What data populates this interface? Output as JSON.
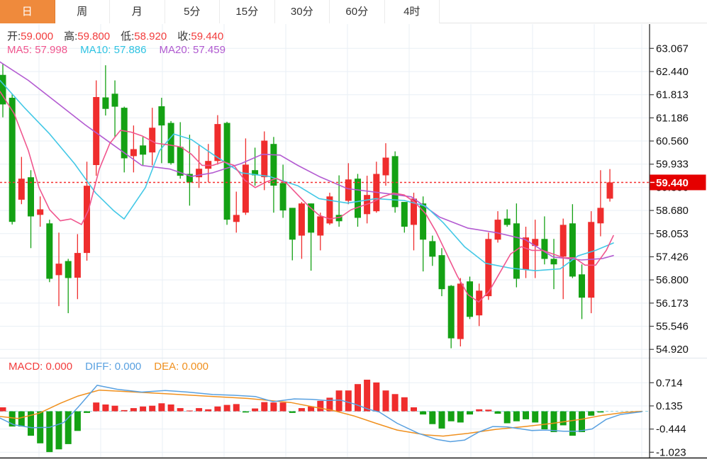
{
  "tabs": {
    "items": [
      {
        "label": "日",
        "active": true
      },
      {
        "label": "周",
        "active": false
      },
      {
        "label": "月",
        "active": false
      },
      {
        "label": "5分",
        "active": false
      },
      {
        "label": "15分",
        "active": false
      },
      {
        "label": "30分",
        "active": false
      },
      {
        "label": "60分",
        "active": false
      },
      {
        "label": "4时",
        "active": false
      }
    ]
  },
  "info": {
    "open_label": "开:",
    "open": "59.000",
    "high_label": "高:",
    "high": "59.800",
    "low_label": "低:",
    "low": "58.920",
    "close_label": "收:",
    "close": "59.440"
  },
  "ma": {
    "ma5_label": "MA5:",
    "ma5_value": "57.998",
    "ma10_label": "MA10:",
    "ma10_value": "57.886",
    "ma20_label": "MA20:",
    "ma20_value": "57.459"
  },
  "macd_header": {
    "macd_label": "MACD:",
    "macd_value": "0.000",
    "diff_label": "DIFF:",
    "diff_value": "0.000",
    "dea_label": "DEA:",
    "dea_value": "0.000"
  },
  "price_axis": {
    "ticks": [
      "63.067",
      "62.440",
      "61.813",
      "61.186",
      "60.560",
      "59.933",
      "59.306",
      "58.680",
      "58.053",
      "57.426",
      "56.800",
      "56.173",
      "55.546",
      "54.920"
    ],
    "last_price": "59.440"
  },
  "macd_axis": {
    "ticks": [
      "0.714",
      "0.135",
      "-0.444",
      "-1.023"
    ]
  },
  "colors": {
    "up": "#ef2d2d",
    "down": "#14a114",
    "ma5": "#f0568e",
    "ma10": "#43c8e6",
    "ma20": "#b35bd1",
    "diff": "#58a0e0",
    "dea": "#f0901e",
    "tab_active": "#ef8a3c",
    "price_line": "#f53030",
    "badge_bg": "#e50000",
    "grid": "#e9eff5",
    "axis": "#3c3c3c",
    "zero_dash": "#8fd3e8"
  },
  "chart_data": {
    "type": "candlestick+macd",
    "main": {
      "type": "candlestick",
      "ylim": [
        54.92,
        63.38
      ],
      "yticks": [
        63.067,
        62.44,
        61.813,
        61.186,
        60.56,
        59.933,
        59.306,
        58.68,
        58.053,
        57.426,
        56.8,
        56.173,
        55.546,
        54.92
      ],
      "last_price": 59.44,
      "grid": true,
      "candles_ohlc": [
        [
          62.35,
          62.65,
          61.2,
          61.55
        ],
        [
          61.73,
          61.84,
          58.3,
          58.37
        ],
        [
          58.97,
          60.13,
          58.85,
          59.54
        ],
        [
          59.58,
          59.77,
          57.66,
          58.52
        ],
        [
          58.56,
          59.06,
          58.24,
          58.71
        ],
        [
          58.33,
          58.43,
          56.74,
          56.83
        ],
        [
          56.93,
          58.08,
          56.09,
          57.24
        ],
        [
          57.31,
          57.37,
          55.9,
          56.85
        ],
        [
          56.86,
          58.04,
          56.28,
          57.53
        ],
        [
          57.53,
          60.0,
          57.32,
          59.35
        ],
        [
          59.91,
          62.2,
          59.62,
          61.75
        ],
        [
          61.74,
          62.61,
          61.25,
          61.43
        ],
        [
          61.84,
          62.2,
          60.67,
          61.49
        ],
        [
          61.46,
          61.49,
          59.71,
          60.09
        ],
        [
          60.15,
          60.98,
          59.71,
          60.34
        ],
        [
          60.44,
          60.67,
          59.9,
          60.19
        ],
        [
          60.25,
          61.46,
          59.9,
          60.92
        ],
        [
          61.5,
          61.73,
          59.96,
          60.98
        ],
        [
          61.05,
          61.1,
          59.92,
          59.96
        ],
        [
          60.4,
          61.07,
          59.54,
          59.62
        ],
        [
          59.67,
          60.73,
          58.81,
          59.44
        ],
        [
          59.58,
          60.44,
          59.29,
          59.81
        ],
        [
          59.81,
          60.48,
          59.44,
          60.02
        ],
        [
          60.02,
          61.26,
          59.92,
          61.02
        ],
        [
          61.05,
          61.08,
          58.29,
          58.43
        ],
        [
          58.37,
          59.19,
          58.08,
          58.56
        ],
        [
          58.62,
          60.63,
          58.56,
          59.92
        ],
        [
          59.77,
          60.38,
          59.35,
          59.63
        ],
        [
          59.58,
          60.82,
          59.23,
          60.57
        ],
        [
          60.48,
          60.67,
          58.62,
          59.35
        ],
        [
          59.42,
          59.92,
          58.48,
          58.68
        ],
        [
          58.75,
          58.75,
          57.33,
          57.89
        ],
        [
          58.0,
          58.91,
          57.37,
          58.87
        ],
        [
          58.87,
          58.87,
          57.05,
          58.08
        ],
        [
          58.0,
          58.62,
          57.6,
          58.52
        ],
        [
          58.33,
          59.16,
          58.29,
          59.06
        ],
        [
          58.56,
          59.63,
          58.24,
          58.39
        ],
        [
          58.94,
          59.96,
          58.85,
          59.52
        ],
        [
          59.54,
          59.67,
          58.24,
          58.48
        ],
        [
          58.58,
          59.62,
          58.33,
          59.1
        ],
        [
          58.66,
          60.0,
          58.62,
          59.67
        ],
        [
          59.63,
          60.5,
          59.35,
          60.11
        ],
        [
          60.15,
          60.28,
          58.62,
          58.77
        ],
        [
          58.91,
          58.91,
          58.08,
          58.24
        ],
        [
          58.29,
          59.16,
          57.6,
          59.0
        ],
        [
          58.87,
          59.06,
          57.03,
          57.89
        ],
        [
          57.85,
          58.0,
          57.18,
          57.43
        ],
        [
          57.47,
          57.66,
          56.36,
          56.55
        ],
        [
          56.64,
          56.66,
          54.95,
          55.22
        ],
        [
          55.2,
          56.85,
          55.0,
          56.7
        ],
        [
          56.76,
          56.89,
          55.74,
          55.8
        ],
        [
          55.84,
          56.7,
          55.55,
          56.51
        ],
        [
          56.36,
          58.08,
          56.26,
          57.91
        ],
        [
          57.89,
          58.66,
          57.81,
          58.43
        ],
        [
          58.46,
          58.71,
          58.24,
          58.29
        ],
        [
          58.33,
          58.87,
          56.6,
          56.83
        ],
        [
          57.08,
          58.24,
          56.85,
          57.95
        ],
        [
          57.72,
          58.43,
          56.85,
          57.91
        ],
        [
          57.91,
          58.52,
          57.22,
          57.37
        ],
        [
          57.37,
          57.91,
          56.55,
          57.22
        ],
        [
          57.43,
          58.46,
          56.28,
          58.29
        ],
        [
          58.33,
          58.85,
          56.85,
          56.89
        ],
        [
          56.95,
          57.22,
          55.74,
          56.32
        ],
        [
          56.32,
          58.66,
          55.9,
          58.37
        ],
        [
          58.33,
          59.77,
          57.98,
          58.75
        ],
        [
          59.0,
          59.8,
          58.92,
          59.44
        ]
      ],
      "ma5": [
        [
          0,
          61.9
        ],
        [
          20,
          61.3
        ],
        [
          40,
          60.3
        ],
        [
          55,
          59.3
        ],
        [
          70,
          58.7
        ],
        [
          85,
          58.4
        ],
        [
          100,
          58.45
        ],
        [
          115,
          58.3
        ],
        [
          125,
          58.7
        ],
        [
          140,
          59.8
        ],
        [
          155,
          60.5
        ],
        [
          170,
          60.85
        ],
        [
          185,
          60.8
        ],
        [
          200,
          60.7
        ],
        [
          220,
          60.5
        ],
        [
          240,
          60.45
        ],
        [
          255,
          60.4
        ],
        [
          270,
          60.2
        ],
        [
          285,
          59.9
        ],
        [
          300,
          59.9
        ],
        [
          315,
          60.0
        ],
        [
          330,
          59.9
        ],
        [
          345,
          59.5
        ],
        [
          360,
          59.3
        ],
        [
          375,
          59.45
        ],
        [
          390,
          59.55
        ],
        [
          405,
          59.4
        ],
        [
          420,
          59.1
        ],
        [
          435,
          58.8
        ],
        [
          450,
          58.55
        ],
        [
          465,
          58.45
        ],
        [
          480,
          58.5
        ],
        [
          495,
          58.7
        ],
        [
          510,
          58.8
        ],
        [
          525,
          58.9
        ],
        [
          540,
          59.05
        ],
        [
          555,
          59.15
        ],
        [
          570,
          59.1
        ],
        [
          585,
          58.9
        ],
        [
          600,
          58.6
        ],
        [
          615,
          58.1
        ],
        [
          630,
          57.5
        ],
        [
          645,
          56.9
        ],
        [
          660,
          56.4
        ],
        [
          675,
          56.2
        ],
        [
          690,
          56.5
        ],
        [
          705,
          57.0
        ],
        [
          720,
          57.5
        ],
        [
          735,
          57.7
        ],
        [
          750,
          57.6
        ],
        [
          765,
          57.6
        ],
        [
          780,
          57.5
        ],
        [
          795,
          57.4
        ],
        [
          810,
          57.4
        ],
        [
          825,
          57.2
        ],
        [
          840,
          57.2
        ],
        [
          855,
          57.6
        ],
        [
          865,
          58.0
        ]
      ],
      "ma10": [
        [
          0,
          62.2
        ],
        [
          35,
          61.45
        ],
        [
          70,
          60.75
        ],
        [
          105,
          59.95
        ],
        [
          135,
          59.15
        ],
        [
          160,
          58.68
        ],
        [
          175,
          58.45
        ],
        [
          205,
          59.3
        ],
        [
          225,
          60.3
        ],
        [
          245,
          60.75
        ],
        [
          270,
          60.6
        ],
        [
          300,
          60.2
        ],
        [
          340,
          59.7
        ],
        [
          380,
          59.6
        ],
        [
          420,
          59.35
        ],
        [
          450,
          59.0
        ],
        [
          490,
          58.88
        ],
        [
          530,
          59.0
        ],
        [
          570,
          58.95
        ],
        [
          600,
          58.8
        ],
        [
          625,
          58.35
        ],
        [
          655,
          57.7
        ],
        [
          685,
          57.25
        ],
        [
          720,
          57.12
        ],
        [
          755,
          57.05
        ],
        [
          790,
          57.1
        ],
        [
          815,
          57.45
        ],
        [
          840,
          57.6
        ],
        [
          865,
          57.8
        ]
      ],
      "ma20": [
        [
          0,
          62.7
        ],
        [
          40,
          62.2
        ],
        [
          80,
          61.6
        ],
        [
          120,
          61.0
        ],
        [
          160,
          60.45
        ],
        [
          200,
          59.9
        ],
        [
          240,
          59.8
        ],
        [
          270,
          59.6
        ],
        [
          300,
          59.7
        ],
        [
          340,
          59.95
        ],
        [
          370,
          60.2
        ],
        [
          395,
          60.18
        ],
        [
          420,
          59.9
        ],
        [
          450,
          59.6
        ],
        [
          490,
          59.27
        ],
        [
          540,
          59.15
        ],
        [
          580,
          59.05
        ],
        [
          620,
          58.5
        ],
        [
          660,
          58.2
        ],
        [
          700,
          58.08
        ],
        [
          740,
          57.9
        ],
        [
          780,
          57.42
        ],
        [
          820,
          57.34
        ],
        [
          850,
          57.38
        ],
        [
          865,
          57.46
        ]
      ]
    },
    "macd": {
      "type": "bar+line",
      "yticks": [
        0.714,
        0.135,
        -0.444,
        -1.023
      ],
      "histogram": [
        0.1,
        -0.38,
        -0.38,
        -0.61,
        -0.8,
        -1.02,
        -0.95,
        -0.82,
        -0.49,
        -0.04,
        0.22,
        0.17,
        0.14,
        0.03,
        0.08,
        0.12,
        0.14,
        0.2,
        0.17,
        0.08,
        0.02,
        0.08,
        0.05,
        0.12,
        0.16,
        0.18,
        -0.03,
        0.07,
        0.23,
        0.22,
        0.22,
        -0.04,
        0.08,
        0.12,
        0.26,
        0.34,
        0.52,
        0.52,
        0.68,
        0.79,
        0.72,
        0.52,
        0.43,
        0.35,
        0.1,
        -0.08,
        -0.32,
        -0.43,
        -0.25,
        -0.28,
        -0.08,
        0.05,
        0.04,
        -0.06,
        -0.3,
        -0.25,
        -0.2,
        -0.28,
        -0.45,
        -0.52,
        -0.35,
        -0.61,
        -0.52,
        -0.11,
        -0.03,
        0.0
      ],
      "diff": [
        [
          0,
          -0.17
        ],
        [
          20,
          -0.34
        ],
        [
          45,
          -0.41
        ],
        [
          70,
          -0.4
        ],
        [
          90,
          -0.28
        ],
        [
          110,
          0.1
        ],
        [
          137,
          0.65
        ],
        [
          165,
          0.55
        ],
        [
          200,
          0.48
        ],
        [
          233,
          0.52
        ],
        [
          265,
          0.48
        ],
        [
          300,
          0.42
        ],
        [
          330,
          0.4
        ],
        [
          360,
          0.37
        ],
        [
          385,
          0.24
        ],
        [
          415,
          0.31
        ],
        [
          440,
          0.3
        ],
        [
          460,
          0.27
        ],
        [
          480,
          0.28
        ],
        [
          500,
          0.18
        ],
        [
          520,
          0.05
        ],
        [
          535,
          -0.02
        ],
        [
          560,
          -0.3
        ],
        [
          590,
          -0.55
        ],
        [
          615,
          -0.7
        ],
        [
          635,
          -0.76
        ],
        [
          655,
          -0.72
        ],
        [
          675,
          -0.52
        ],
        [
          695,
          -0.38
        ],
        [
          715,
          -0.39
        ],
        [
          735,
          -0.44
        ],
        [
          750,
          -0.48
        ],
        [
          770,
          -0.47
        ],
        [
          795,
          -0.5
        ],
        [
          815,
          -0.5
        ],
        [
          835,
          -0.44
        ],
        [
          855,
          -0.2
        ],
        [
          875,
          -0.08
        ],
        [
          905,
          -0.01
        ]
      ],
      "dea": [
        [
          0,
          -0.13
        ],
        [
          25,
          -0.18
        ],
        [
          55,
          -0.05
        ],
        [
          85,
          0.2
        ],
        [
          110,
          0.38
        ],
        [
          140,
          0.53
        ],
        [
          180,
          0.49
        ],
        [
          233,
          0.44
        ],
        [
          290,
          0.38
        ],
        [
          350,
          0.32
        ],
        [
          410,
          0.22
        ],
        [
          445,
          0.1
        ],
        [
          470,
          0.02
        ],
        [
          500,
          -0.12
        ],
        [
          530,
          -0.3
        ],
        [
          560,
          -0.47
        ],
        [
          600,
          -0.59
        ],
        [
          625,
          -0.62
        ],
        [
          660,
          -0.55
        ],
        [
          700,
          -0.45
        ],
        [
          740,
          -0.38
        ],
        [
          780,
          -0.3
        ],
        [
          820,
          -0.2
        ],
        [
          850,
          -0.1
        ],
        [
          880,
          -0.03
        ],
        [
          905,
          0.0
        ]
      ]
    }
  }
}
